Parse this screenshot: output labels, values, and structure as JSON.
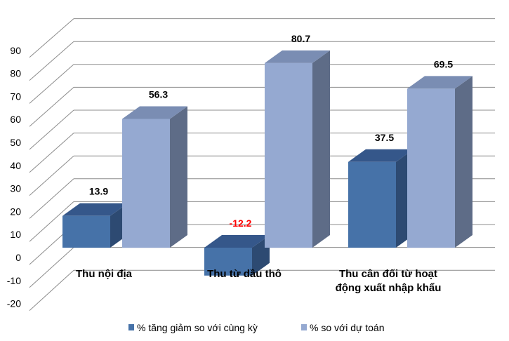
{
  "chart_data": {
    "type": "bar",
    "title": "",
    "xlabel": "",
    "ylabel": "",
    "ylim": [
      -20,
      90
    ],
    "yticks": [
      90,
      80,
      70,
      60,
      50,
      40,
      30,
      20,
      10,
      0,
      -10,
      -20
    ],
    "grid": true,
    "legend_position": "bottom",
    "categories": [
      [
        "Thu nội địa"
      ],
      [
        "Thu từ dầu thô"
      ],
      [
        "Thu cân đối từ hoạt",
        "động xuất nhập khẩu"
      ]
    ],
    "series": [
      {
        "name": "% tăng giảm so với cùng kỳ",
        "values": [
          13.9,
          -12.2,
          37.5
        ],
        "color": "#4672A8",
        "labels": [
          "13.9",
          "-12.2",
          "37.5"
        ]
      },
      {
        "name": "% so với dự toán",
        "values": [
          56.3,
          80.7,
          69.5
        ],
        "color": "#95A9D1",
        "labels": [
          "56.3",
          "80.7",
          "69.5"
        ]
      }
    ],
    "negative_label_color": "#FF0000"
  }
}
